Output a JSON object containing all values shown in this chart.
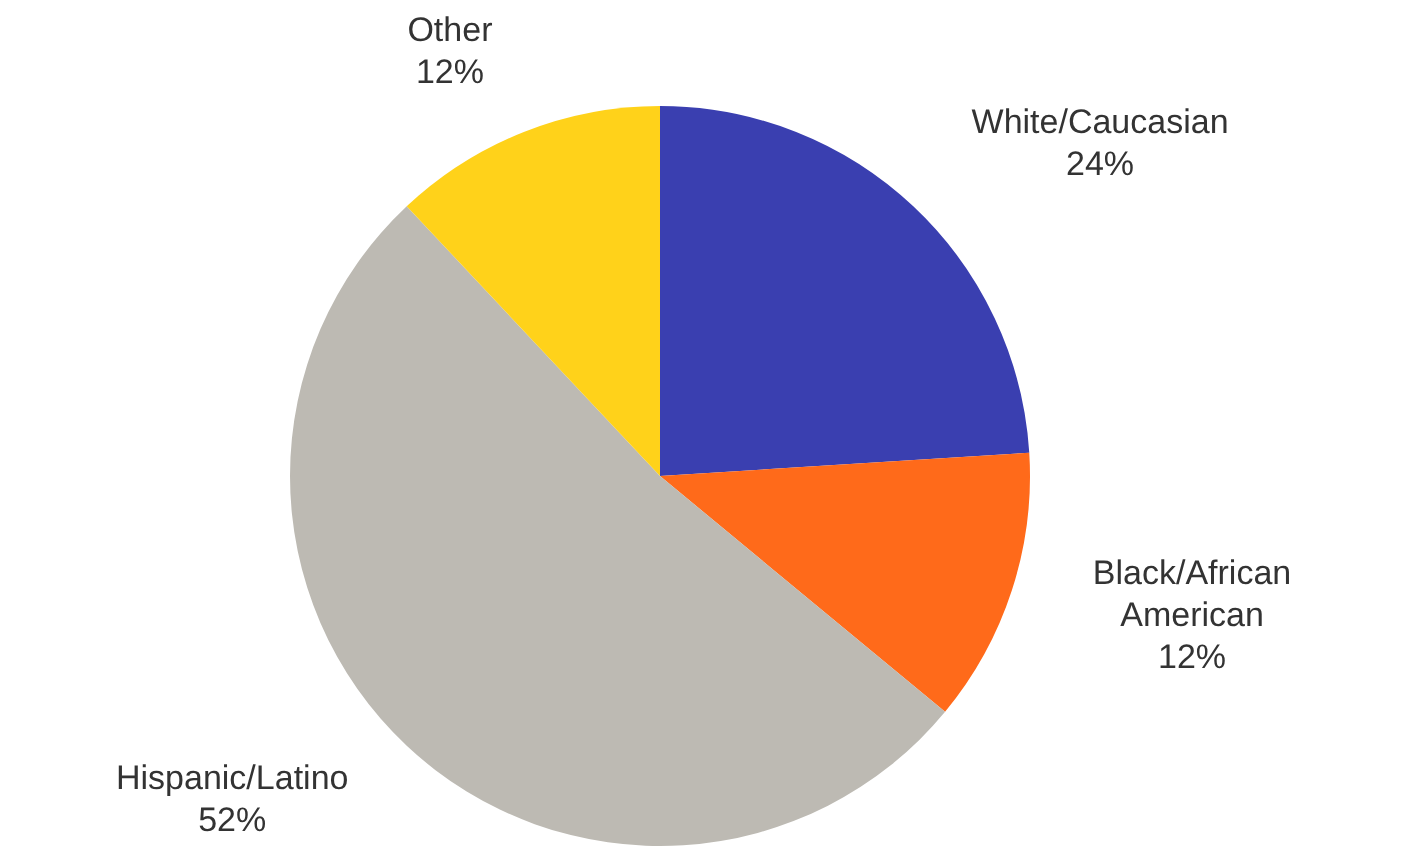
{
  "chart_data": {
    "type": "pie",
    "categories": [
      "White/Caucasian",
      "Black/African American",
      "Hispanic/Latino",
      "Other"
    ],
    "values": [
      24,
      12,
      52,
      12
    ],
    "value_labels": [
      "24%",
      "12%",
      "52%",
      "12%"
    ],
    "colors": [
      "#3a3fb0",
      "#ff6a1a",
      "#bdbab3",
      "#ffd21a"
    ],
    "legend": false
  }
}
